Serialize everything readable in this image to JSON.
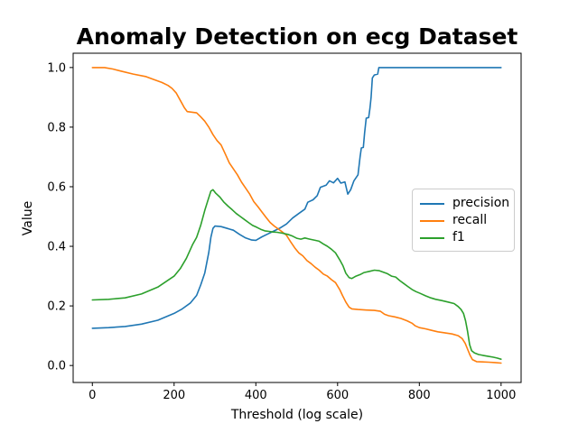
{
  "chart_data": {
    "type": "line",
    "title": "Anomaly Detection on ecg Dataset",
    "xlabel": "Threshold (log scale)",
    "ylabel": "Value",
    "xlim": [
      -47,
      1049
    ],
    "ylim": [
      -0.057,
      1.048
    ],
    "x_ticks": [
      0,
      200,
      400,
      600,
      800,
      1000
    ],
    "x_tick_labels": [
      "0",
      "200",
      "400",
      "600",
      "800",
      "1000"
    ],
    "y_ticks": [
      0.0,
      0.2,
      0.4,
      0.6,
      0.8,
      1.0
    ],
    "y_tick_labels": [
      "0.0",
      "0.2",
      "0.4",
      "0.6",
      "0.8",
      "1.0"
    ],
    "grid": false,
    "legend_position": "center right",
    "series": [
      {
        "name": "precision",
        "color": "#1f77b4",
        "points": [
          [
            0,
            0.125
          ],
          [
            40,
            0.127
          ],
          [
            80,
            0.131
          ],
          [
            120,
            0.139
          ],
          [
            160,
            0.152
          ],
          [
            200,
            0.175
          ],
          [
            220,
            0.19
          ],
          [
            240,
            0.21
          ],
          [
            255,
            0.235
          ],
          [
            265,
            0.27
          ],
          [
            275,
            0.31
          ],
          [
            285,
            0.38
          ],
          [
            290,
            0.43
          ],
          [
            295,
            0.46
          ],
          [
            300,
            0.468
          ],
          [
            315,
            0.466
          ],
          [
            330,
            0.46
          ],
          [
            345,
            0.454
          ],
          [
            360,
            0.44
          ],
          [
            375,
            0.428
          ],
          [
            390,
            0.421
          ],
          [
            400,
            0.42
          ],
          [
            415,
            0.432
          ],
          [
            430,
            0.442
          ],
          [
            445,
            0.452
          ],
          [
            460,
            0.462
          ],
          [
            475,
            0.475
          ],
          [
            490,
            0.495
          ],
          [
            505,
            0.51
          ],
          [
            520,
            0.525
          ],
          [
            527,
            0.548
          ],
          [
            540,
            0.556
          ],
          [
            550,
            0.57
          ],
          [
            558,
            0.598
          ],
          [
            572,
            0.605
          ],
          [
            580,
            0.62
          ],
          [
            590,
            0.613
          ],
          [
            600,
            0.628
          ],
          [
            608,
            0.612
          ],
          [
            618,
            0.616
          ],
          [
            625,
            0.575
          ],
          [
            632,
            0.59
          ],
          [
            640,
            0.62
          ],
          [
            650,
            0.64
          ],
          [
            655,
            0.7
          ],
          [
            658,
            0.73
          ],
          [
            663,
            0.732
          ],
          [
            666,
            0.78
          ],
          [
            670,
            0.83
          ],
          [
            676,
            0.832
          ],
          [
            679,
            0.862
          ],
          [
            682,
            0.9
          ],
          [
            685,
            0.965
          ],
          [
            690,
            0.975
          ],
          [
            698,
            0.978
          ],
          [
            701,
            1.0
          ],
          [
            1000,
            1.0
          ]
        ]
      },
      {
        "name": "recall",
        "color": "#ff7f0e",
        "points": [
          [
            0,
            1.0
          ],
          [
            30,
            1.0
          ],
          [
            50,
            0.995
          ],
          [
            70,
            0.988
          ],
          [
            100,
            0.978
          ],
          [
            130,
            0.97
          ],
          [
            150,
            0.96
          ],
          [
            170,
            0.95
          ],
          [
            185,
            0.94
          ],
          [
            195,
            0.93
          ],
          [
            205,
            0.915
          ],
          [
            215,
            0.89
          ],
          [
            225,
            0.865
          ],
          [
            232,
            0.852
          ],
          [
            255,
            0.848
          ],
          [
            265,
            0.835
          ],
          [
            275,
            0.82
          ],
          [
            285,
            0.8
          ],
          [
            295,
            0.775
          ],
          [
            305,
            0.755
          ],
          [
            315,
            0.74
          ],
          [
            325,
            0.71
          ],
          [
            335,
            0.68
          ],
          [
            345,
            0.66
          ],
          [
            355,
            0.64
          ],
          [
            365,
            0.615
          ],
          [
            375,
            0.595
          ],
          [
            385,
            0.575
          ],
          [
            395,
            0.55
          ],
          [
            405,
            0.533
          ],
          [
            415,
            0.515
          ],
          [
            425,
            0.497
          ],
          [
            435,
            0.48
          ],
          [
            445,
            0.468
          ],
          [
            455,
            0.458
          ],
          [
            465,
            0.448
          ],
          [
            475,
            0.437
          ],
          [
            485,
            0.415
          ],
          [
            495,
            0.395
          ],
          [
            505,
            0.378
          ],
          [
            515,
            0.368
          ],
          [
            525,
            0.352
          ],
          [
            535,
            0.342
          ],
          [
            545,
            0.33
          ],
          [
            555,
            0.32
          ],
          [
            565,
            0.307
          ],
          [
            575,
            0.3
          ],
          [
            585,
            0.288
          ],
          [
            595,
            0.278
          ],
          [
            605,
            0.255
          ],
          [
            612,
            0.235
          ],
          [
            620,
            0.213
          ],
          [
            628,
            0.196
          ],
          [
            635,
            0.19
          ],
          [
            650,
            0.188
          ],
          [
            670,
            0.186
          ],
          [
            690,
            0.185
          ],
          [
            705,
            0.182
          ],
          [
            715,
            0.172
          ],
          [
            725,
            0.167
          ],
          [
            740,
            0.163
          ],
          [
            755,
            0.158
          ],
          [
            770,
            0.15
          ],
          [
            782,
            0.142
          ],
          [
            790,
            0.133
          ],
          [
            800,
            0.127
          ],
          [
            815,
            0.123
          ],
          [
            830,
            0.118
          ],
          [
            845,
            0.113
          ],
          [
            860,
            0.11
          ],
          [
            880,
            0.106
          ],
          [
            895,
            0.1
          ],
          [
            905,
            0.09
          ],
          [
            912,
            0.075
          ],
          [
            918,
            0.055
          ],
          [
            924,
            0.035
          ],
          [
            930,
            0.02
          ],
          [
            940,
            0.013
          ],
          [
            955,
            0.012
          ],
          [
            970,
            0.011
          ],
          [
            985,
            0.01
          ],
          [
            1000,
            0.008
          ]
        ]
      },
      {
        "name": "f1",
        "color": "#2ca02c",
        "points": [
          [
            0,
            0.22
          ],
          [
            40,
            0.222
          ],
          [
            80,
            0.227
          ],
          [
            120,
            0.24
          ],
          [
            160,
            0.263
          ],
          [
            200,
            0.3
          ],
          [
            215,
            0.325
          ],
          [
            230,
            0.36
          ],
          [
            245,
            0.405
          ],
          [
            255,
            0.43
          ],
          [
            265,
            0.47
          ],
          [
            275,
            0.52
          ],
          [
            283,
            0.555
          ],
          [
            290,
            0.585
          ],
          [
            295,
            0.59
          ],
          [
            302,
            0.578
          ],
          [
            312,
            0.565
          ],
          [
            322,
            0.548
          ],
          [
            332,
            0.535
          ],
          [
            342,
            0.523
          ],
          [
            352,
            0.51
          ],
          [
            362,
            0.5
          ],
          [
            372,
            0.49
          ],
          [
            382,
            0.48
          ],
          [
            392,
            0.47
          ],
          [
            402,
            0.464
          ],
          [
            412,
            0.457
          ],
          [
            422,
            0.452
          ],
          [
            432,
            0.45
          ],
          [
            442,
            0.448
          ],
          [
            452,
            0.447
          ],
          [
            465,
            0.444
          ],
          [
            478,
            0.44
          ],
          [
            490,
            0.434
          ],
          [
            500,
            0.427
          ],
          [
            510,
            0.424
          ],
          [
            520,
            0.428
          ],
          [
            532,
            0.424
          ],
          [
            545,
            0.42
          ],
          [
            555,
            0.417
          ],
          [
            565,
            0.408
          ],
          [
            575,
            0.4
          ],
          [
            585,
            0.39
          ],
          [
            595,
            0.378
          ],
          [
            605,
            0.355
          ],
          [
            613,
            0.335
          ],
          [
            620,
            0.31
          ],
          [
            628,
            0.295
          ],
          [
            635,
            0.292
          ],
          [
            645,
            0.3
          ],
          [
            655,
            0.305
          ],
          [
            665,
            0.312
          ],
          [
            678,
            0.316
          ],
          [
            690,
            0.32
          ],
          [
            702,
            0.318
          ],
          [
            712,
            0.313
          ],
          [
            722,
            0.308
          ],
          [
            732,
            0.3
          ],
          [
            742,
            0.297
          ],
          [
            752,
            0.285
          ],
          [
            762,
            0.275
          ],
          [
            772,
            0.265
          ],
          [
            782,
            0.255
          ],
          [
            792,
            0.248
          ],
          [
            802,
            0.242
          ],
          [
            815,
            0.234
          ],
          [
            828,
            0.227
          ],
          [
            840,
            0.222
          ],
          [
            855,
            0.218
          ],
          [
            870,
            0.213
          ],
          [
            885,
            0.208
          ],
          [
            895,
            0.198
          ],
          [
            902,
            0.188
          ],
          [
            908,
            0.175
          ],
          [
            913,
            0.15
          ],
          [
            918,
            0.115
          ],
          [
            923,
            0.07
          ],
          [
            928,
            0.05
          ],
          [
            935,
            0.042
          ],
          [
            945,
            0.037
          ],
          [
            955,
            0.034
          ],
          [
            968,
            0.031
          ],
          [
            980,
            0.028
          ],
          [
            990,
            0.025
          ],
          [
            1000,
            0.021
          ]
        ]
      }
    ]
  }
}
